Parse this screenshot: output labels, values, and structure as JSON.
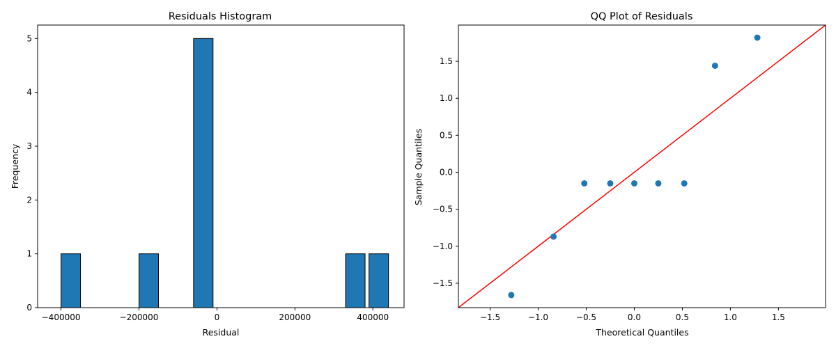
{
  "chart_data": [
    {
      "type": "bar",
      "title": "Residuals Histogram",
      "xlabel": "Residual",
      "ylabel": "Frequency",
      "bars": [
        {
          "x0": -400000,
          "x1": -350000,
          "count": 1
        },
        {
          "x0": -200000,
          "x1": -150000,
          "count": 1
        },
        {
          "x0": -60000,
          "x1": -10000,
          "count": 5
        },
        {
          "x0": 330000,
          "x1": 380000,
          "count": 1
        },
        {
          "x0": 390000,
          "x1": 440000,
          "count": 1
        }
      ],
      "xlim": [
        -460000,
        480000
      ],
      "ylim": [
        0,
        5.25
      ],
      "xticks": [
        -400000,
        -200000,
        0,
        200000,
        400000
      ],
      "xtick_labels": [
        "−400000",
        "−200000",
        "0",
        "200000",
        "400000"
      ],
      "yticks": [
        0,
        1,
        2,
        3,
        4,
        5
      ],
      "ytick_labels": [
        "0",
        "1",
        "2",
        "3",
        "4",
        "5"
      ],
      "grid": false,
      "bar_color": "#1f77b4"
    },
    {
      "type": "scatter",
      "title": "QQ Plot of Residuals",
      "xlabel": "Theoretical Quantiles",
      "ylabel": "Sample Quantiles",
      "points": [
        {
          "x": -1.28,
          "y": -1.66
        },
        {
          "x": -0.84,
          "y": -0.87
        },
        {
          "x": -0.52,
          "y": -0.15
        },
        {
          "x": -0.25,
          "y": -0.15
        },
        {
          "x": 0.0,
          "y": -0.15
        },
        {
          "x": 0.25,
          "y": -0.15
        },
        {
          "x": 0.52,
          "y": -0.15
        },
        {
          "x": 0.84,
          "y": 1.44
        },
        {
          "x": 1.28,
          "y": 1.82
        }
      ],
      "reference_line": {
        "slope": 1,
        "intercept": 0,
        "color": "#ff0000"
      },
      "xlim": [
        -1.83,
        1.99
      ],
      "ylim": [
        -1.83,
        1.99
      ],
      "xticks": [
        -1.5,
        -1.0,
        -0.5,
        0.0,
        0.5,
        1.0,
        1.5
      ],
      "xtick_labels": [
        "−1.5",
        "−1.0",
        "−0.5",
        "0.0",
        "0.5",
        "1.0",
        "1.5"
      ],
      "yticks": [
        -1.5,
        -1.0,
        -0.5,
        0.0,
        0.5,
        1.0,
        1.5
      ],
      "ytick_labels": [
        "−1.5",
        "−1.0",
        "−0.5",
        "0.0",
        "0.5",
        "1.0",
        "1.5"
      ],
      "grid": false,
      "point_color": "#1f77b4"
    }
  ]
}
